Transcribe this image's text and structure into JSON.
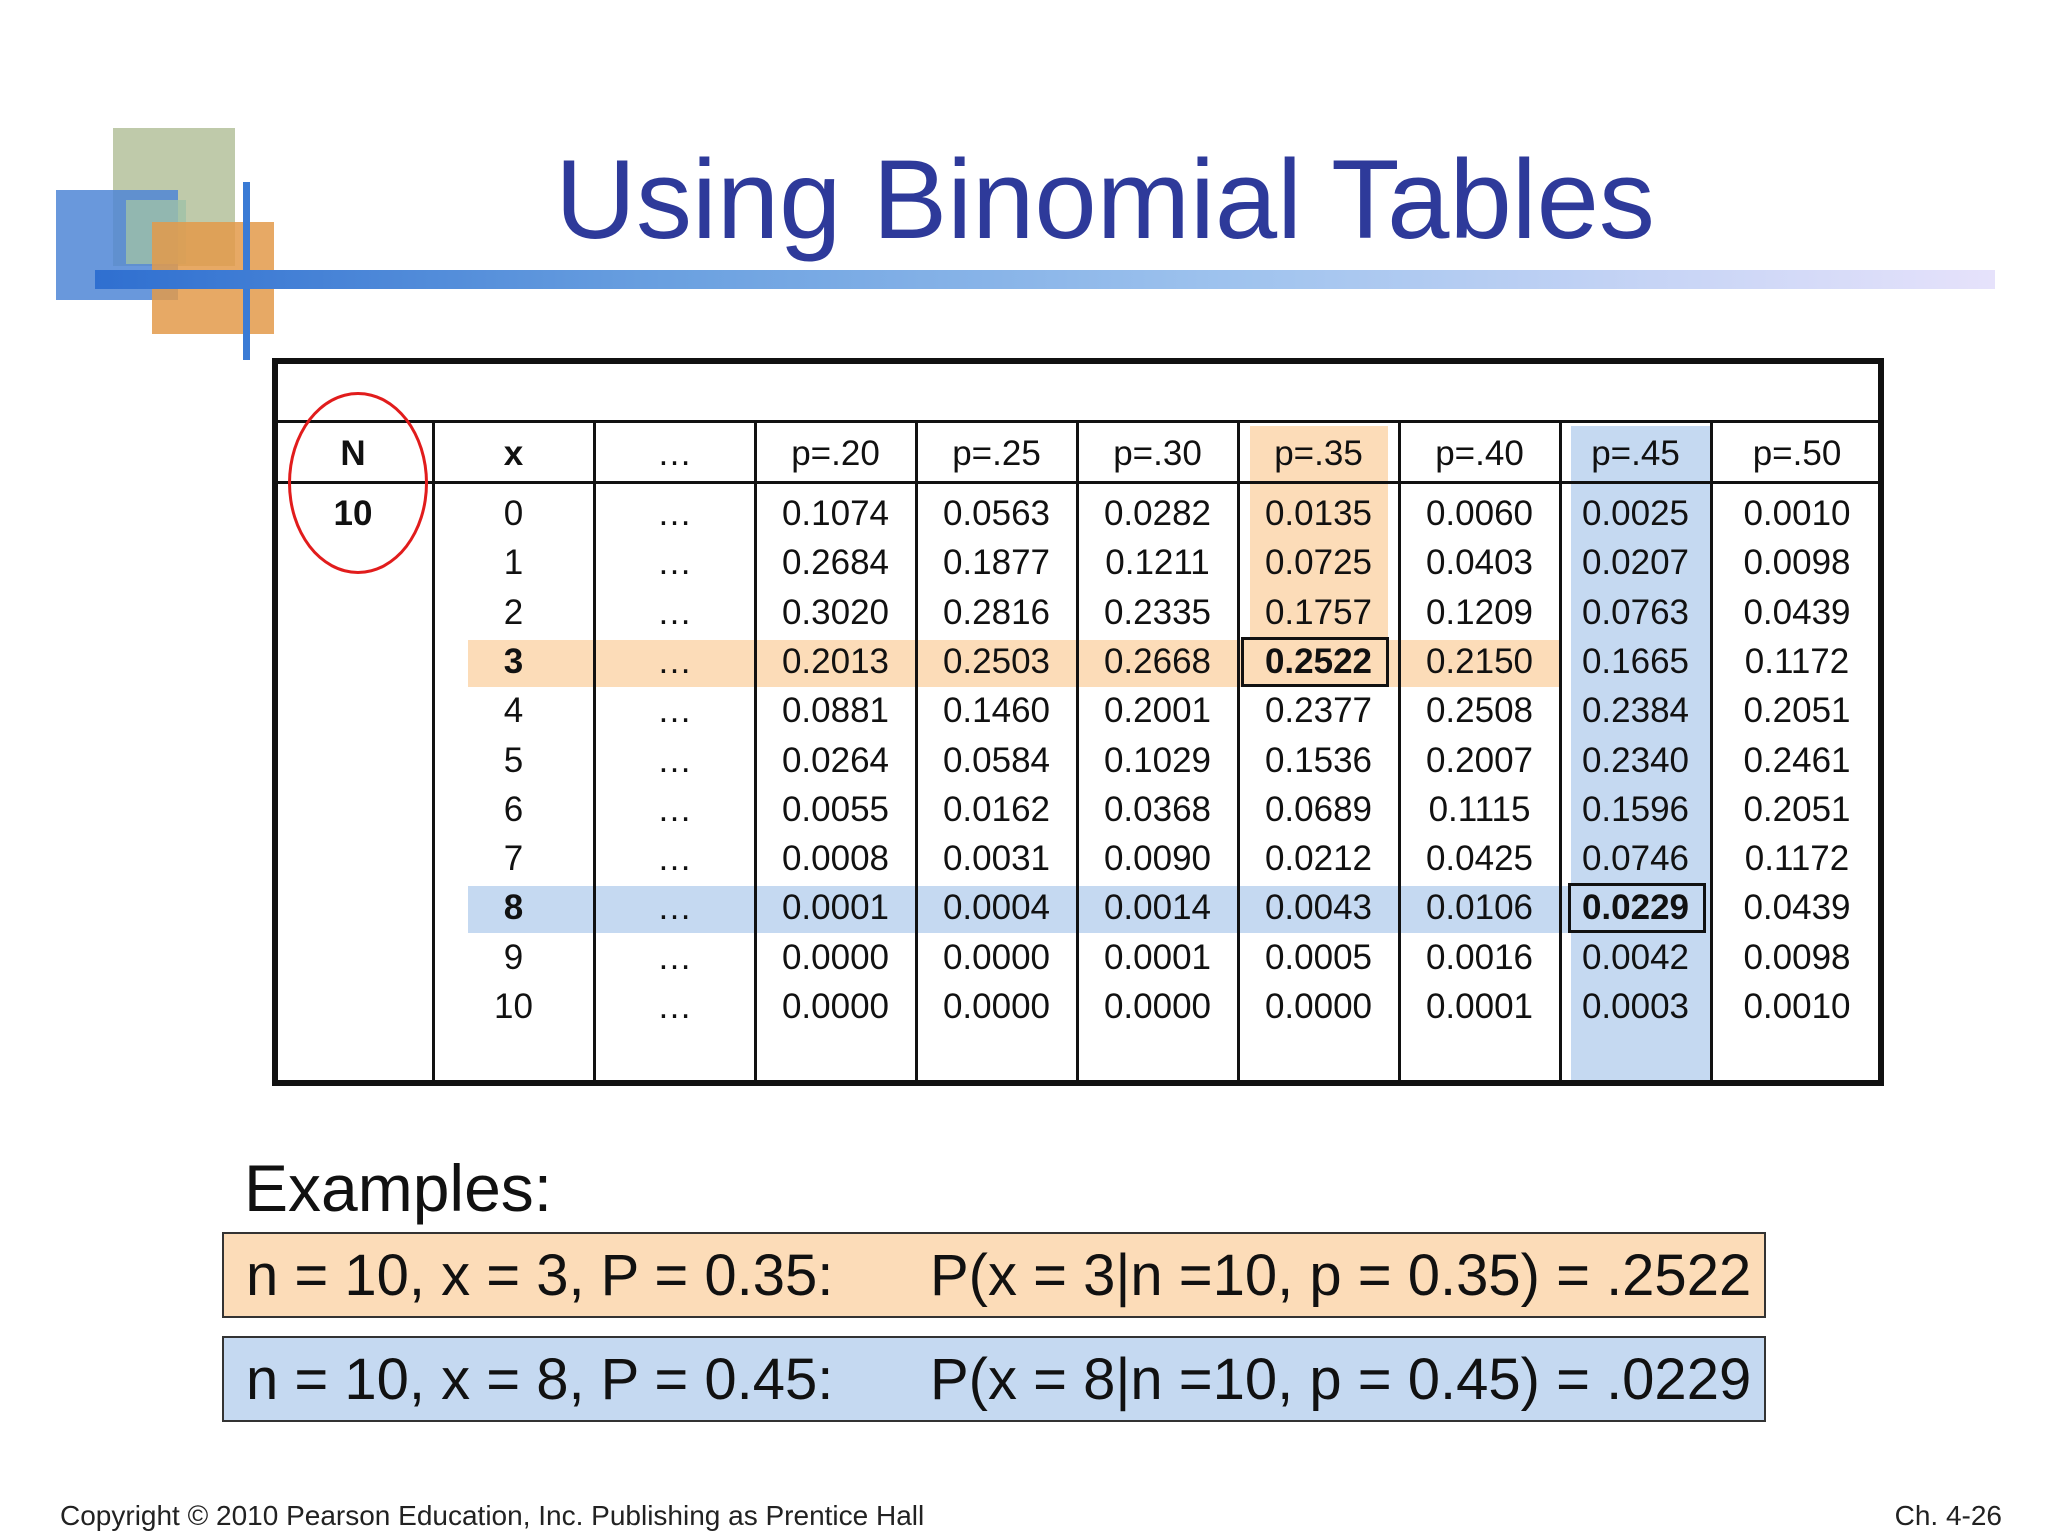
{
  "slide": {
    "title": "Using Binomial Tables",
    "footer_left": "Copyright © 2010 Pearson Education, Inc. Publishing as Prentice Hall",
    "footer_right": "Ch. 4-26"
  },
  "table": {
    "headers": [
      "N",
      "x",
      "…",
      "p=.20",
      "p=.25",
      "p=.30",
      "p=.35",
      "p=.40",
      "p=.45",
      "p=.50"
    ],
    "n_value": "10",
    "rows": [
      {
        "x": "0",
        "dots": "…",
        "v": [
          "0.1074",
          "0.0563",
          "0.0282",
          "0.0135",
          "0.0060",
          "0.0025",
          "0.0010"
        ]
      },
      {
        "x": "1",
        "dots": "…",
        "v": [
          "0.2684",
          "0.1877",
          "0.1211",
          "0.0725",
          "0.0403",
          "0.0207",
          "0.0098"
        ]
      },
      {
        "x": "2",
        "dots": "…",
        "v": [
          "0.3020",
          "0.2816",
          "0.2335",
          "0.1757",
          "0.1209",
          "0.0763",
          "0.0439"
        ]
      },
      {
        "x": "3",
        "dots": "…",
        "v": [
          "0.2013",
          "0.2503",
          "0.2668",
          "0.2522",
          "0.2150",
          "0.1665",
          "0.1172"
        ]
      },
      {
        "x": "4",
        "dots": "…",
        "v": [
          "0.0881",
          "0.1460",
          "0.2001",
          "0.2377",
          "0.2508",
          "0.2384",
          "0.2051"
        ]
      },
      {
        "x": "5",
        "dots": "…",
        "v": [
          "0.0264",
          "0.0584",
          "0.1029",
          "0.1536",
          "0.2007",
          "0.2340",
          "0.2461"
        ]
      },
      {
        "x": "6",
        "dots": "…",
        "v": [
          "0.0055",
          "0.0162",
          "0.0368",
          "0.0689",
          "0.1115",
          "0.1596",
          "0.2051"
        ]
      },
      {
        "x": "7",
        "dots": "…",
        "v": [
          "0.0008",
          "0.0031",
          "0.0090",
          "0.0212",
          "0.0425",
          "0.0746",
          "0.1172"
        ]
      },
      {
        "x": "8",
        "dots": "…",
        "v": [
          "0.0001",
          "0.0004",
          "0.0014",
          "0.0043",
          "0.0106",
          "0.0229",
          "0.0439"
        ]
      },
      {
        "x": "9",
        "dots": "…",
        "v": [
          "0.0000",
          "0.0000",
          "0.0001",
          "0.0005",
          "0.0016",
          "0.0042",
          "0.0098"
        ]
      },
      {
        "x": "10",
        "dots": "…",
        "v": [
          "0.0000",
          "0.0000",
          "0.0000",
          "0.0000",
          "0.0001",
          "0.0003",
          "0.0010"
        ]
      }
    ]
  },
  "examples": {
    "heading": "Examples:",
    "items": [
      {
        "left": "n = 10, x = 3, P = 0.35:",
        "right": "P(x = 3|n =10, p = 0.35) = .2522"
      },
      {
        "left": "n = 10, x = 8, P = 0.45:",
        "right": "P(x = 8|n =10, p = 0.45) = .0229"
      }
    ]
  },
  "colors": {
    "title": "#2e3a9a",
    "highlight_orange": "#fcdcb8",
    "highlight_blue": "#c5d9f1",
    "circle": "#e11c1c"
  }
}
